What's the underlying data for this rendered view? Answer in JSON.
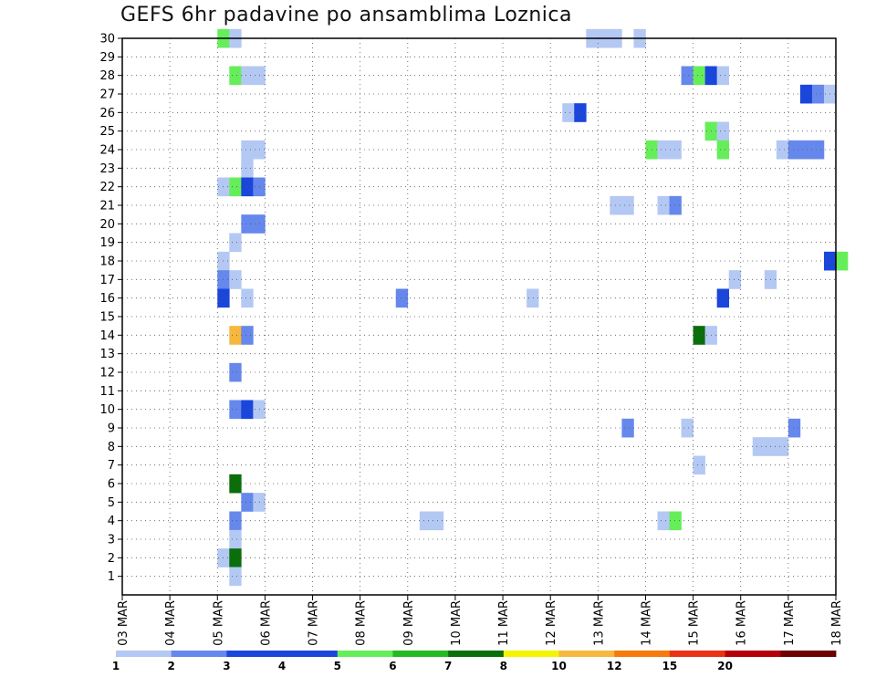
{
  "chart_data": {
    "type": "heatmap",
    "title": "GEFS 6hr padavine po ansamblima Loznica",
    "x_tick_labels": [
      "03 MAR",
      "04 MAR",
      "05 MAR",
      "06 MAR",
      "07 MAR",
      "08 MAR",
      "09 MAR",
      "10 MAR",
      "11 MAR",
      "12 MAR",
      "13 MAR",
      "14 MAR",
      "15 MAR",
      "16 MAR",
      "17 MAR",
      "18 MAR"
    ],
    "y_tick_labels": [
      "1",
      "2",
      "3",
      "4",
      "5",
      "6",
      "7",
      "8",
      "9",
      "10",
      "11",
      "12",
      "13",
      "14",
      "15",
      "16",
      "17",
      "18",
      "19",
      "20",
      "21",
      "22",
      "23",
      "24",
      "25",
      "26",
      "27",
      "28",
      "29",
      "30"
    ],
    "x_range_days": [
      0,
      15
    ],
    "time_step_hours": 6,
    "ylim": [
      0,
      30
    ],
    "grid": true,
    "colorbar_levels": [
      "1",
      "2",
      "3",
      "4",
      "5",
      "6",
      "7",
      "8",
      "10",
      "12",
      "15",
      "20"
    ],
    "colorbar_colors": [
      "#b4c8f4",
      "#6688ec",
      "#1a46dc",
      "#1a46dc",
      "#66ee5a",
      "#22bb22",
      "#0a6e0a",
      "#f4f400",
      "#f6b83c",
      "#f67a0c",
      "#e83414",
      "#b4000a",
      "#6e0000"
    ],
    "cells": [
      {
        "member": 30,
        "day": 2.0,
        "level": 5
      },
      {
        "member": 30,
        "day": 2.25,
        "level": 1
      },
      {
        "member": 30,
        "day": 9.75,
        "level": 1
      },
      {
        "member": 30,
        "day": 10.0,
        "level": 1
      },
      {
        "member": 30,
        "day": 10.25,
        "level": 1
      },
      {
        "member": 30,
        "day": 10.75,
        "level": 1
      },
      {
        "member": 28,
        "day": 2.25,
        "level": 5
      },
      {
        "member": 28,
        "day": 2.5,
        "level": 1
      },
      {
        "member": 28,
        "day": 2.75,
        "level": 1
      },
      {
        "member": 28,
        "day": 11.75,
        "level": 2
      },
      {
        "member": 28,
        "day": 12.0,
        "level": 5
      },
      {
        "member": 28,
        "day": 12.25,
        "level": 3
      },
      {
        "member": 28,
        "day": 12.5,
        "level": 1
      },
      {
        "member": 27,
        "day": 14.25,
        "level": 3
      },
      {
        "member": 27,
        "day": 14.5,
        "level": 2
      },
      {
        "member": 27,
        "day": 14.75,
        "level": 1
      },
      {
        "member": 26,
        "day": 9.25,
        "level": 1
      },
      {
        "member": 26,
        "day": 9.5,
        "level": 3
      },
      {
        "member": 25,
        "day": 12.25,
        "level": 5
      },
      {
        "member": 25,
        "day": 12.5,
        "level": 1
      },
      {
        "member": 24,
        "day": 2.5,
        "level": 1
      },
      {
        "member": 24,
        "day": 2.75,
        "level": 1
      },
      {
        "member": 24,
        "day": 11.0,
        "level": 5
      },
      {
        "member": 24,
        "day": 11.25,
        "level": 1
      },
      {
        "member": 24,
        "day": 11.5,
        "level": 1
      },
      {
        "member": 24,
        "day": 12.5,
        "level": 5
      },
      {
        "member": 24,
        "day": 13.75,
        "level": 1
      },
      {
        "member": 24,
        "day": 14.0,
        "level": 2
      },
      {
        "member": 24,
        "day": 14.25,
        "level": 2
      },
      {
        "member": 24,
        "day": 14.5,
        "level": 2
      },
      {
        "member": 23,
        "day": 2.5,
        "level": 1
      },
      {
        "member": 22,
        "day": 2.0,
        "level": 1
      },
      {
        "member": 22,
        "day": 2.25,
        "level": 5
      },
      {
        "member": 22,
        "day": 2.5,
        "level": 3
      },
      {
        "member": 22,
        "day": 2.75,
        "level": 2
      },
      {
        "member": 21,
        "day": 10.25,
        "level": 1
      },
      {
        "member": 21,
        "day": 10.5,
        "level": 1
      },
      {
        "member": 21,
        "day": 11.25,
        "level": 1
      },
      {
        "member": 21,
        "day": 11.5,
        "level": 2
      },
      {
        "member": 20,
        "day": 2.5,
        "level": 2
      },
      {
        "member": 20,
        "day": 2.75,
        "level": 2
      },
      {
        "member": 19,
        "day": 2.25,
        "level": 1
      },
      {
        "member": 18,
        "day": 2.0,
        "level": 1
      },
      {
        "member": 18,
        "day": 14.75,
        "level": 3
      },
      {
        "member": 18,
        "day": 15.0,
        "level": 5
      },
      {
        "member": 17,
        "day": 2.0,
        "level": 2
      },
      {
        "member": 17,
        "day": 2.25,
        "level": 1
      },
      {
        "member": 17,
        "day": 12.75,
        "level": 1
      },
      {
        "member": 17,
        "day": 13.5,
        "level": 1
      },
      {
        "member": 16,
        "day": 2.0,
        "level": 3
      },
      {
        "member": 16,
        "day": 2.5,
        "level": 1
      },
      {
        "member": 16,
        "day": 5.75,
        "level": 2
      },
      {
        "member": 16,
        "day": 8.5,
        "level": 1
      },
      {
        "member": 16,
        "day": 12.5,
        "level": 3
      },
      {
        "member": 14,
        "day": 2.25,
        "level": 10
      },
      {
        "member": 14,
        "day": 2.5,
        "level": 2
      },
      {
        "member": 14,
        "day": 12.0,
        "level": 7
      },
      {
        "member": 14,
        "day": 12.25,
        "level": 1
      },
      {
        "member": 12,
        "day": 2.25,
        "level": 2
      },
      {
        "member": 10,
        "day": 2.25,
        "level": 2
      },
      {
        "member": 10,
        "day": 2.5,
        "level": 3
      },
      {
        "member": 10,
        "day": 2.75,
        "level": 1
      },
      {
        "member": 9,
        "day": 10.5,
        "level": 2
      },
      {
        "member": 9,
        "day": 11.75,
        "level": 1
      },
      {
        "member": 9,
        "day": 14.0,
        "level": 2
      },
      {
        "member": 8,
        "day": 13.25,
        "level": 1
      },
      {
        "member": 8,
        "day": 13.5,
        "level": 1
      },
      {
        "member": 8,
        "day": 13.75,
        "level": 1
      },
      {
        "member": 7,
        "day": 12.0,
        "level": 1
      },
      {
        "member": 6,
        "day": 2.25,
        "level": 7
      },
      {
        "member": 5,
        "day": 2.5,
        "level": 2
      },
      {
        "member": 5,
        "day": 2.75,
        "level": 1
      },
      {
        "member": 4,
        "day": 2.25,
        "level": 2
      },
      {
        "member": 4,
        "day": 6.25,
        "level": 1
      },
      {
        "member": 4,
        "day": 6.5,
        "level": 1
      },
      {
        "member": 4,
        "day": 11.25,
        "level": 1
      },
      {
        "member": 4,
        "day": 11.5,
        "level": 5
      },
      {
        "member": 3,
        "day": 2.25,
        "level": 1
      },
      {
        "member": 2,
        "day": 2.0,
        "level": 1
      },
      {
        "member": 2,
        "day": 2.25,
        "level": 7
      },
      {
        "member": 1,
        "day": 2.25,
        "level": 1
      }
    ]
  }
}
